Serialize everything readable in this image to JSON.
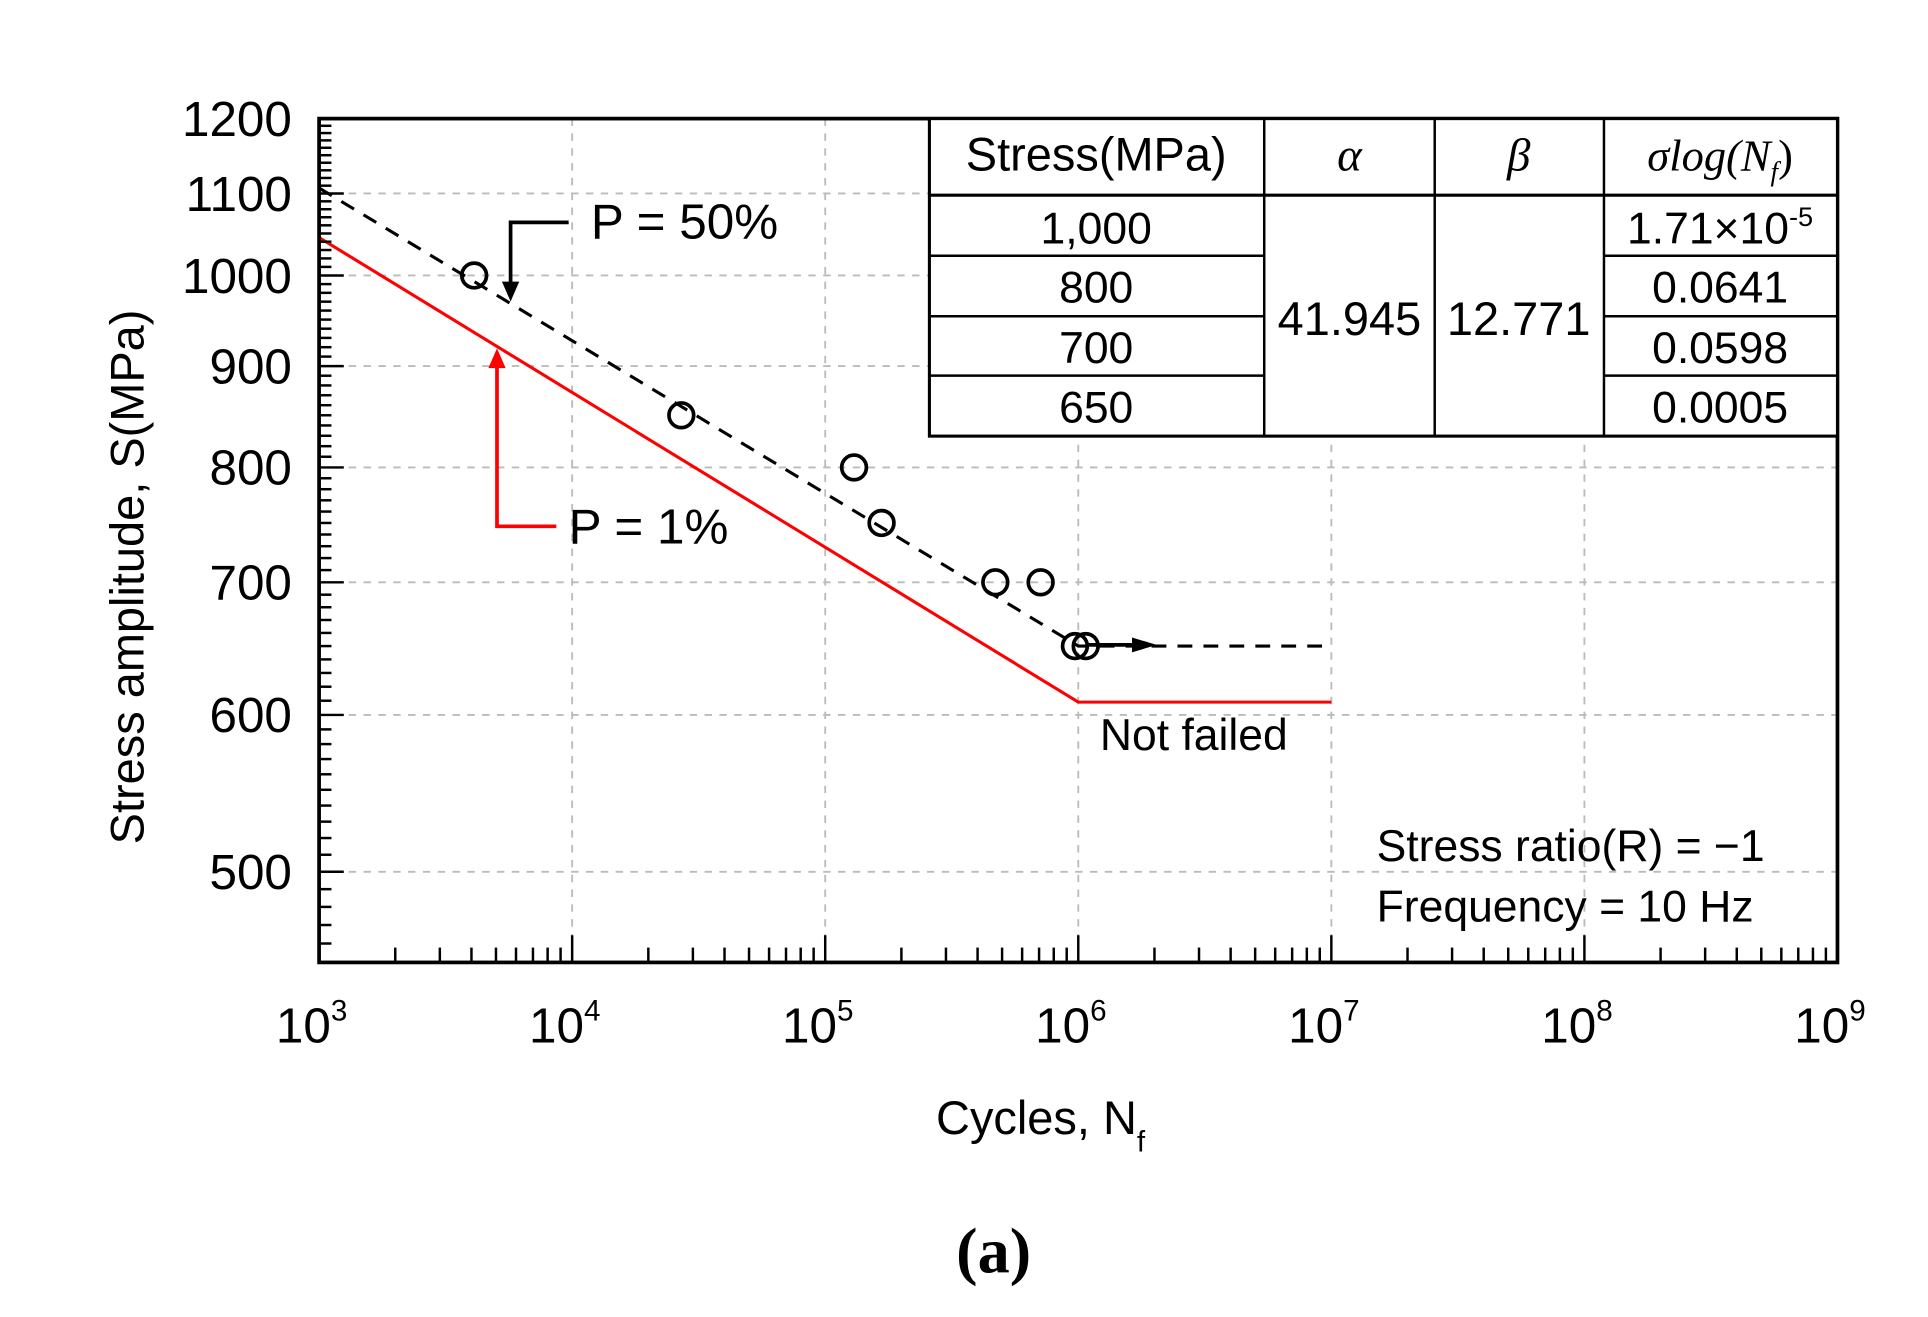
{
  "chart_data": {
    "type": "scatter",
    "xlabel": "Cycles, N",
    "xlabel_sub": "f",
    "ylabel": "Stress amplitude, S(MPa)",
    "caption": "(a)",
    "x_scale": "log",
    "y_scale": "log",
    "xlim": [
      1000,
      1000000000
    ],
    "ylim": [
      450,
      1200
    ],
    "x_ticks": [
      {
        "base": "10",
        "exp": "3",
        "value": 1000
      },
      {
        "base": "10",
        "exp": "4",
        "value": 10000
      },
      {
        "base": "10",
        "exp": "5",
        "value": 100000
      },
      {
        "base": "10",
        "exp": "6",
        "value": 1000000
      },
      {
        "base": "10",
        "exp": "7",
        "value": 10000000
      },
      {
        "base": "10",
        "exp": "8",
        "value": 100000000
      },
      {
        "base": "10",
        "exp": "9",
        "value": 1000000000
      }
    ],
    "y_ticks": [
      "500",
      "600",
      "700",
      "800",
      "900",
      "1000",
      "1100",
      "1200"
    ],
    "grid": true,
    "points": [
      {
        "x": 4100,
        "y": 1000
      },
      {
        "x": 27000,
        "y": 850
      },
      {
        "x": 130000,
        "y": 800
      },
      {
        "x": 167000,
        "y": 750
      },
      {
        "x": 470000,
        "y": 700
      },
      {
        "x": 710000,
        "y": 700
      },
      {
        "x": 970000,
        "y": 650,
        "runout": true
      },
      {
        "x": 1070000,
        "y": 650,
        "runout": true
      }
    ],
    "series": [
      {
        "name": "P = 50%",
        "style": "dashed",
        "color": "#000000",
        "x": [
          1000,
          1000000,
          9300000
        ],
        "y": [
          1107,
          650,
          650
        ]
      },
      {
        "name": "P = 1%",
        "style": "solid",
        "color": "#ff0000",
        "x": [
          1000,
          1000000,
          10000000
        ],
        "y": [
          1045,
          609,
          609
        ]
      }
    ],
    "annotations": {
      "p50": "P = 50%",
      "p1": "P = 1%",
      "not_failed": "Not failed",
      "stress_ratio": "Stress ratio(R) = −1",
      "frequency": "Frequency = 10 Hz"
    },
    "table": {
      "headers": {
        "stress": "Stress(MPa)",
        "alpha": "α",
        "beta": "β",
        "sigma": "σlog(N",
        "sigma_sub": "f",
        "sigma_close": ")"
      },
      "alpha": "41.945",
      "beta": "12.771",
      "rows": [
        {
          "stress": "1,000",
          "sigma": "1.71×10",
          "sigma_exp": "-5"
        },
        {
          "stress": "800",
          "sigma": "0.0641",
          "sigma_exp": ""
        },
        {
          "stress": "700",
          "sigma": "0.0598",
          "sigma_exp": ""
        },
        {
          "stress": "650",
          "sigma": "0.0005",
          "sigma_exp": ""
        }
      ]
    },
    "colors": {
      "p50_line": "#000000",
      "p1_line": "#ff0000",
      "grid": "#bbbbbb"
    }
  }
}
